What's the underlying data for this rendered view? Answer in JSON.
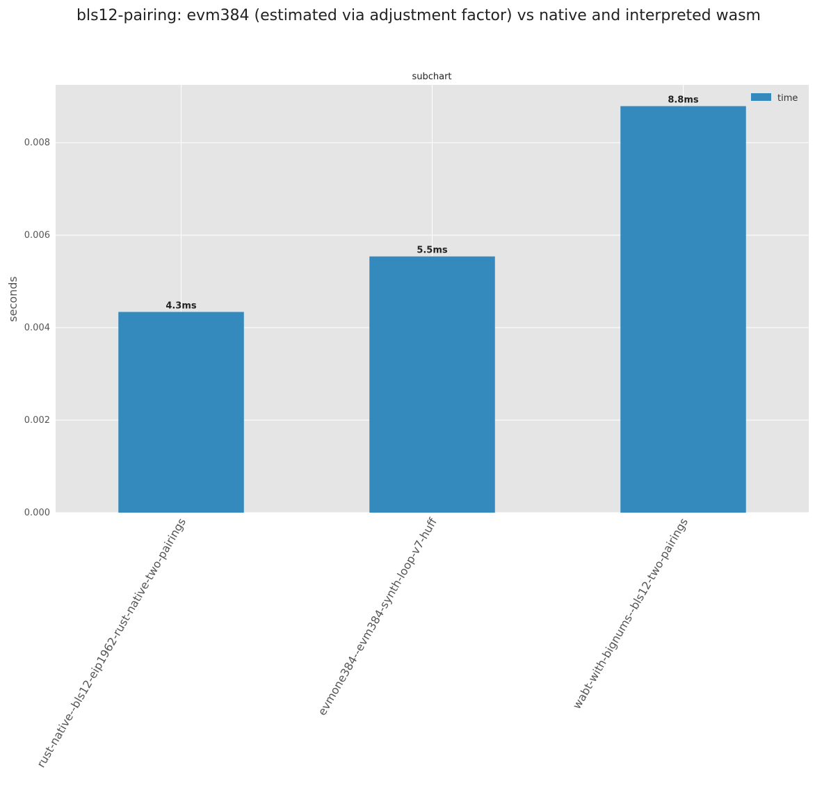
{
  "chart_data": {
    "type": "bar",
    "title": "bls12-pairing: evm384 (estimated via adjustment factor) vs native and interpreted wasm",
    "subtitle": "subchart",
    "ylabel": "seconds",
    "xlabel": "",
    "ylim": [
      0,
      0.00925
    ],
    "yticks": [
      "0.000",
      "0.002",
      "0.004",
      "0.006",
      "0.008"
    ],
    "ytick_values": [
      0,
      0.002,
      0.004,
      0.006,
      0.008
    ],
    "categories": [
      "rust-native--bls12-eip1962-rust-native-two-pairings",
      "evmone384--evm384-synth-loop-v7-huff",
      "wabt-with-bignums--bls12-two-pairings"
    ],
    "series": [
      {
        "name": "time",
        "values": [
          0.00434,
          0.00554,
          0.00879
        ],
        "color": "#348abd"
      }
    ],
    "data_labels": [
      "4.3ms",
      "5.5ms",
      "8.8ms"
    ],
    "grid": true,
    "legend_position": "top-right",
    "background_color": "#e5e5e5",
    "grid_color": "#ffffff"
  }
}
